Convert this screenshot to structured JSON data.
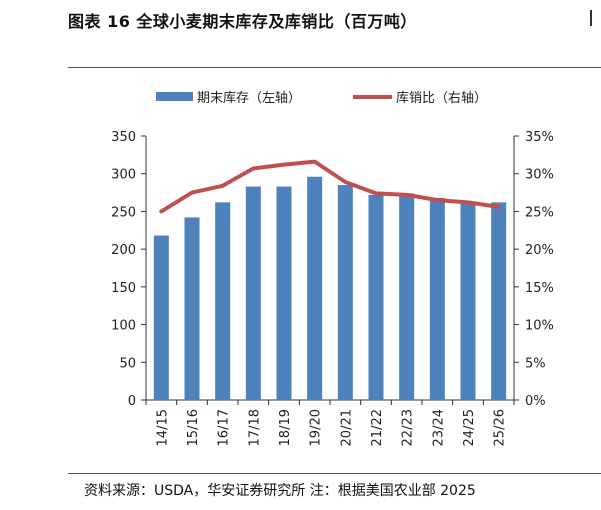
{
  "header": {
    "title": "图表 16  全球小麦期末库存及库销比（百万吨）",
    "corner_mark": "|"
  },
  "footer": {
    "source": "资料来源：USDA，华安证券研究所  注：根据美国农业部 2025"
  },
  "chart_data": {
    "type": "bar+line",
    "categories": [
      "14/15",
      "15/16",
      "16/17",
      "17/18",
      "18/19",
      "19/20",
      "20/21",
      "21/22",
      "22/23",
      "23/24",
      "24/25",
      "25/26"
    ],
    "series": [
      {
        "name": "期末库存（左轴）",
        "type": "bar",
        "axis": "left",
        "color": "#4f81bd",
        "values": [
          218,
          242,
          262,
          283,
          283,
          296,
          285,
          272,
          274,
          268,
          261,
          262
        ]
      },
      {
        "name": "库销比（右轴）",
        "type": "line",
        "axis": "right",
        "color": "#c0504d",
        "values": [
          0.25,
          0.275,
          0.284,
          0.307,
          0.312,
          0.316,
          0.289,
          0.274,
          0.272,
          0.265,
          0.262,
          0.256
        ]
      }
    ],
    "y_left": {
      "ticks": [
        "0",
        "50",
        "100",
        "150",
        "200",
        "250",
        "300",
        "350"
      ],
      "min": 0,
      "max": 350
    },
    "y_right": {
      "ticks": [
        "0%",
        "5%",
        "10%",
        "15%",
        "20%",
        "25%",
        "30%",
        "35%"
      ],
      "min": 0,
      "max": 0.35
    },
    "legend_position": "top",
    "grid": false
  }
}
